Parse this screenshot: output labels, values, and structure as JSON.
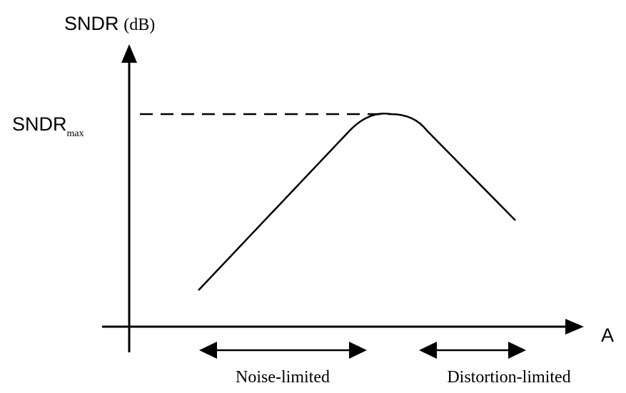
{
  "chart_data": {
    "type": "line",
    "title": "",
    "ylabel": "SNDR",
    "ylabel_unit": "(dB)",
    "xlabel": "A",
    "ref_label": {
      "main": "SNDR",
      "sub": "max"
    },
    "regions": [
      {
        "label": "Noise-limited"
      },
      {
        "label": "Distortion-limited"
      }
    ],
    "grid": false,
    "legend": "none"
  }
}
